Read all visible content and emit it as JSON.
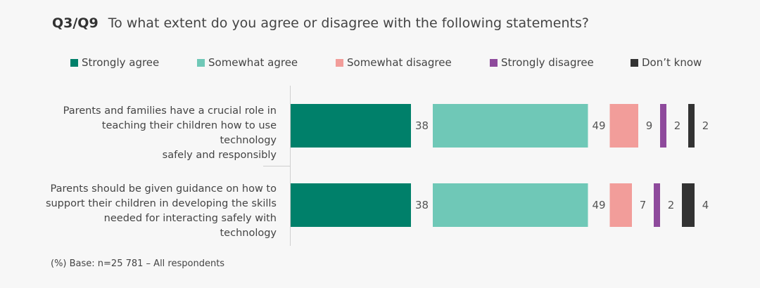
{
  "question": {
    "id": "Q3/Q9",
    "text": "To what extent do you agree or disagree with the following statements?"
  },
  "footnote": "(%) Base: n=25 781 – All respondents",
  "chart_data": {
    "type": "bar",
    "stacked": true,
    "orientation": "horizontal",
    "unit": "%",
    "legend_position": "top",
    "categories": [
      "Parents and families have a crucial role in teaching their children how to use technology safely and responsibly",
      "Parents should be given guidance on how to support their children in developing the skills needed for interacting safely with technology"
    ],
    "category_lines": [
      [
        "Parents and families have a crucial role in",
        "teaching their children how to use technology",
        "safely and responsibly"
      ],
      [
        "Parents should be given guidance on how to",
        "support their children in developing the skills",
        "needed for interacting safely with technology"
      ]
    ],
    "series": [
      {
        "name": "Strongly agree",
        "color": "#00806a",
        "values": [
          38,
          38
        ]
      },
      {
        "name": "Somewhat agree",
        "color": "#6fc8b7",
        "values": [
          49,
          49
        ]
      },
      {
        "name": "Somewhat disagree",
        "color": "#f29d9a",
        "values": [
          9,
          7
        ]
      },
      {
        "name": "Strongly disagree",
        "color": "#8e4a9c",
        "values": [
          2,
          2
        ]
      },
      {
        "name": "Don’t know",
        "color": "#333333",
        "values": [
          2,
          4
        ]
      }
    ]
  }
}
